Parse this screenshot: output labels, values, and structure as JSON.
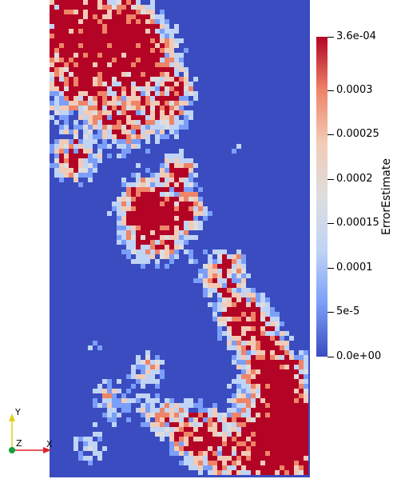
{
  "colorbar": {
    "title": "ErrorEstimate",
    "ticks": [
      {
        "label": "3.6e-04",
        "value": 0.00036
      },
      {
        "label": "0.0003",
        "value": 0.0003
      },
      {
        "label": "0.00025",
        "value": 0.00025
      },
      {
        "label": "0.0002",
        "value": 0.0002
      },
      {
        "label": "0.00015",
        "value": 0.00015
      },
      {
        "label": "0.0001",
        "value": 0.0001
      },
      {
        "label": "5e-5",
        "value": 5e-05
      },
      {
        "label": "0.0e+00",
        "value": 0.0
      }
    ],
    "range": [
      0.0,
      0.00036
    ],
    "colormap": [
      "#3b4cc0",
      "#7b9ff9",
      "#c0d4f5",
      "#dddddd",
      "#f2cbb7",
      "#ee8468",
      "#b40426"
    ]
  },
  "axes_gizmo": {
    "x_label": "X",
    "y_label": "Y",
    "z_label": "Z",
    "x_color": "#e0202a",
    "y_color": "#e0d020",
    "z_color": "#10a040"
  },
  "field": {
    "background_color": "#3b4cc0"
  }
}
